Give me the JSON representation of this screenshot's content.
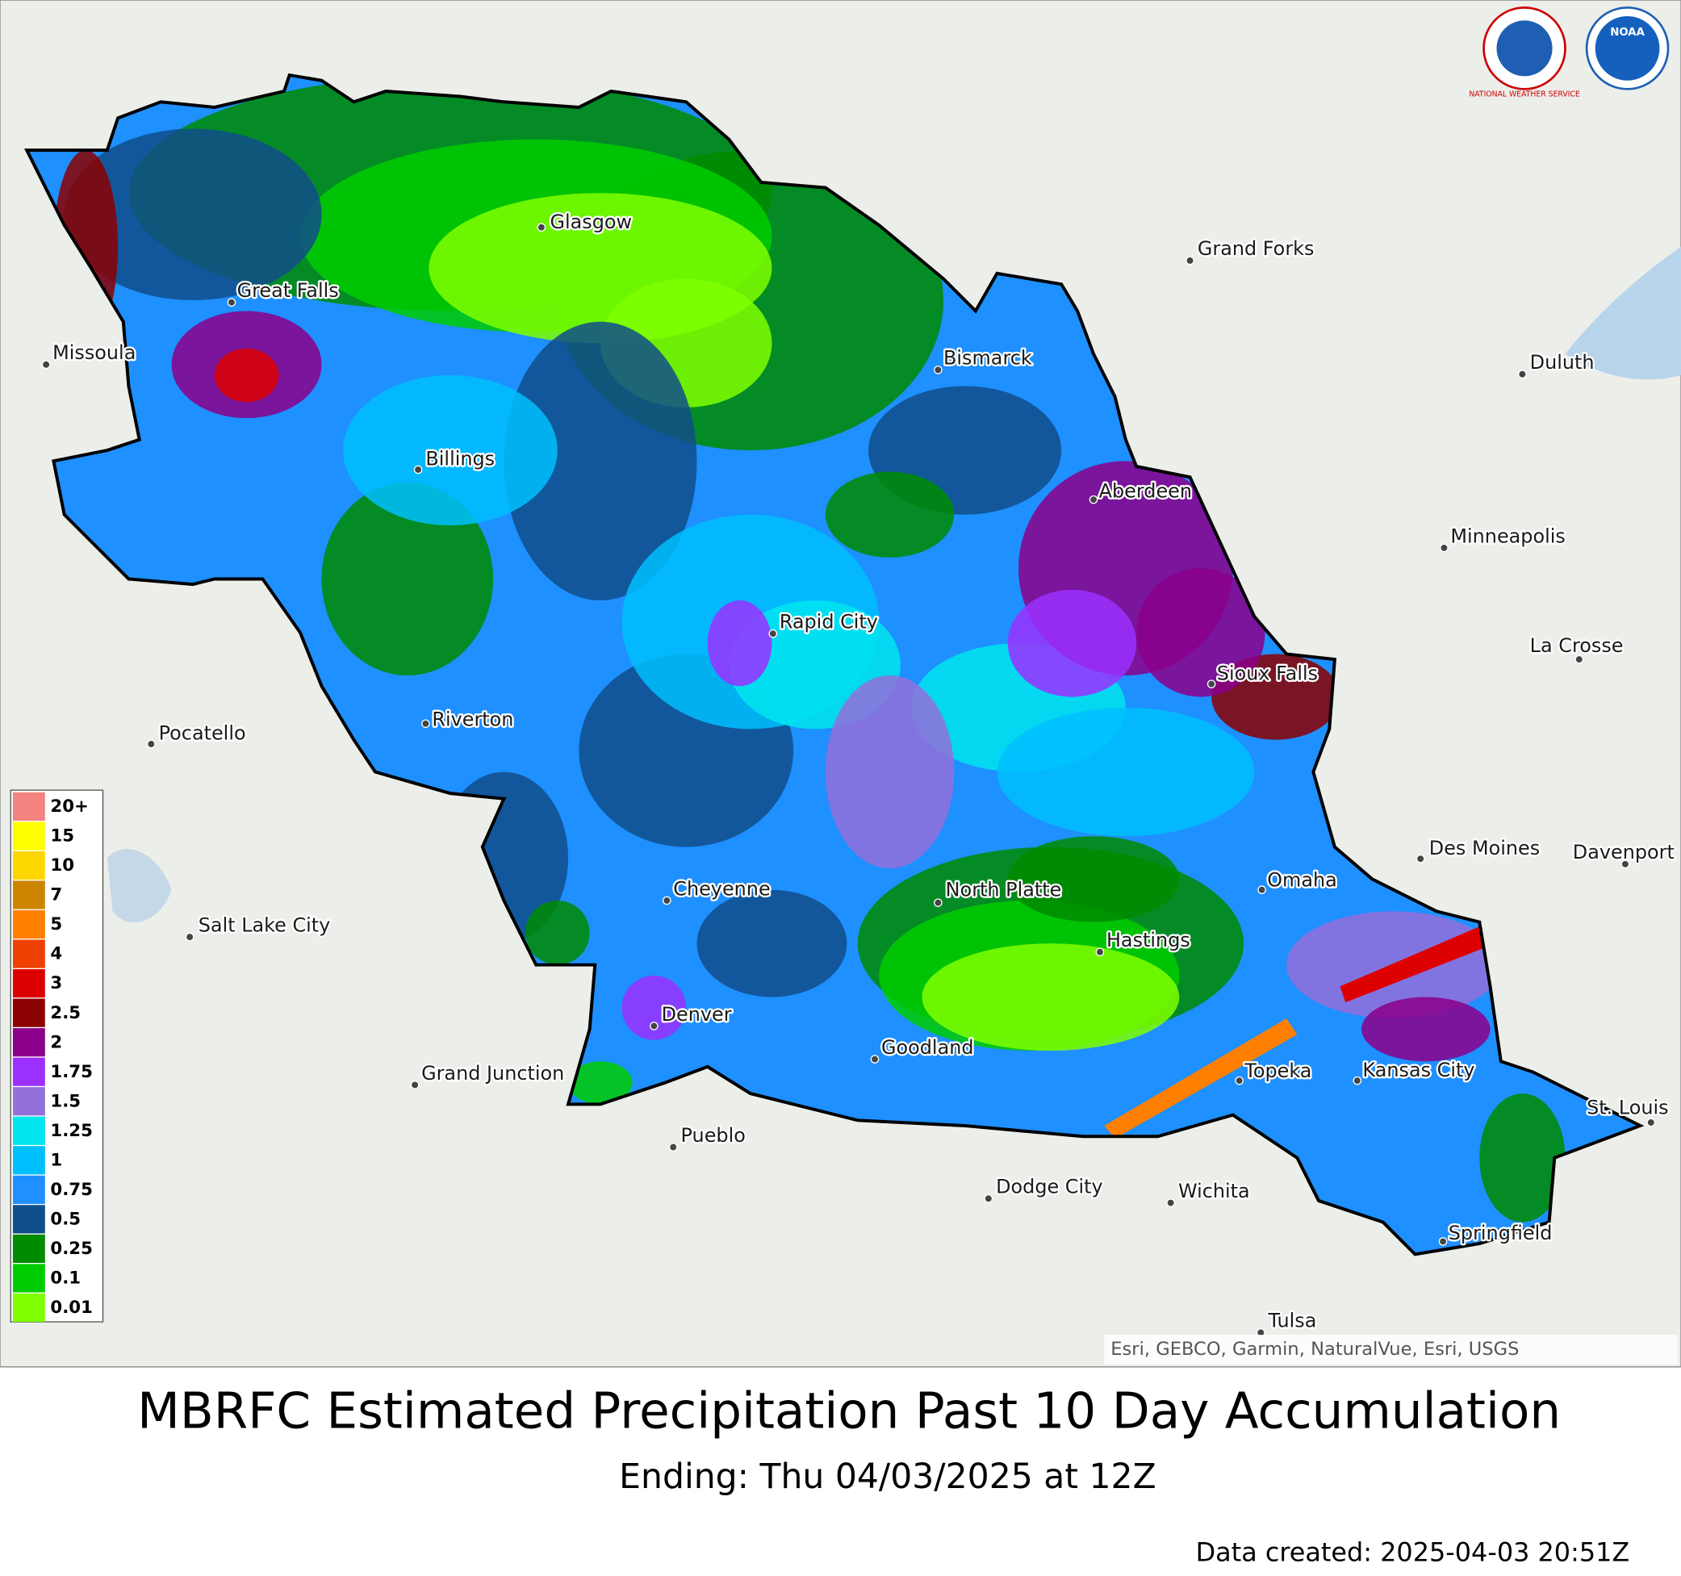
{
  "header": {
    "logos": [
      "NATIONAL WEATHER SERVICE",
      "NOAA"
    ]
  },
  "legend": [
    {
      "label": "20+",
      "color": "#f4827f"
    },
    {
      "label": "15",
      "color": "#ffff00"
    },
    {
      "label": "10",
      "color": "#ffd700"
    },
    {
      "label": "7",
      "color": "#cd8500"
    },
    {
      "label": "5",
      "color": "#ff7f00"
    },
    {
      "label": "4",
      "color": "#ee4000"
    },
    {
      "label": "3",
      "color": "#dd0000"
    },
    {
      "label": "2.5",
      "color": "#8b0000"
    },
    {
      "label": "2",
      "color": "#8b008b"
    },
    {
      "label": "1.75",
      "color": "#9b30ff"
    },
    {
      "label": "1.5",
      "color": "#9370db"
    },
    {
      "label": "1.25",
      "color": "#00e5ee"
    },
    {
      "label": "1",
      "color": "#00bfff"
    },
    {
      "label": "0.75",
      "color": "#1e90ff"
    },
    {
      "label": "0.5",
      "color": "#104e8b"
    },
    {
      "label": "0.25",
      "color": "#008b00"
    },
    {
      "label": "0.1",
      "color": "#00cd00"
    },
    {
      "label": "0.01",
      "color": "#7fff00"
    }
  ],
  "cities": [
    "Glasgow",
    "Great Falls",
    "Missoula",
    "Billings",
    "Bismarck",
    "Grand Forks",
    "Duluth",
    "Aberdeen",
    "Minneapolis",
    "Rapid City",
    "La Crosse",
    "Sioux Falls",
    "Riverton",
    "Pocatello",
    "Des Moines",
    "Davenport",
    "Omaha",
    "Cheyenne",
    "North Platte",
    "Salt Lake City",
    "Hastings",
    "Denver",
    "Goodland",
    "Grand Junction",
    "Topeka",
    "Kansas City",
    "St. Louis",
    "Pueblo",
    "Dodge City",
    "Wichita",
    "Springfield",
    "Tulsa"
  ],
  "attribution": "Esri, GEBCO, Garmin, NaturalVue, Esri, USGS",
  "title": "MBRFC Estimated Precipitation Past 10 Day Accumulation",
  "subtitle": "Ending: Thu 04/03/2025 at 12Z",
  "footer": "Data created: 2025-04-03 20:51Z"
}
